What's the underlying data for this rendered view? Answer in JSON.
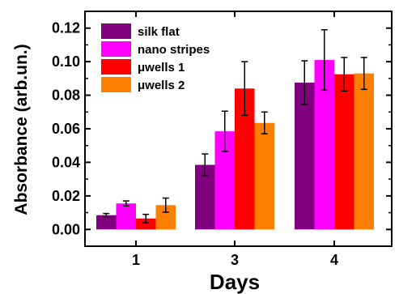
{
  "chart_data": {
    "type": "bar",
    "categories": [
      "1",
      "3",
      "4"
    ],
    "series": [
      {
        "name": "silk flat",
        "color": "#800080",
        "values": [
          0.0085,
          0.0385,
          0.0875
        ],
        "errors": [
          0.001,
          0.0065,
          0.013
        ]
      },
      {
        "name": "nano stripes",
        "color": "#ff00ff",
        "values": [
          0.0155,
          0.0585,
          0.101
        ],
        "errors": [
          0.0015,
          0.012,
          0.018
        ]
      },
      {
        "name": "μwells 1",
        "color": "#ff0000",
        "values": [
          0.0065,
          0.084,
          0.0925
        ],
        "errors": [
          0.0025,
          0.016,
          0.01
        ]
      },
      {
        "name": "μwells 2",
        "color": "#ff8000",
        "values": [
          0.0145,
          0.0635,
          0.093
        ],
        "errors": [
          0.0042,
          0.0065,
          0.0095
        ]
      }
    ],
    "xlabel": "Days",
    "ylabel": "Absorbance (arb.un.)",
    "ylim": [
      -0.01,
      0.13
    ],
    "yticks": [
      "0.00",
      "0.02",
      "0.04",
      "0.06",
      "0.08",
      "0.10",
      "0.12"
    ],
    "legend_position": "top-left",
    "grid": false
  }
}
